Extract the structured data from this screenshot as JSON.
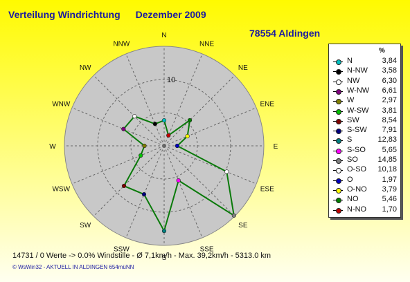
{
  "title": "Verteilung Windrichtung",
  "month": "Dezember 2009",
  "station": "78554 Aldingen",
  "footer": "14731 / 0 Werte  -> 0.0% Windstille   -   Ø 7,1km/h   -  Max. 39,2km/h   -   5313.0 km",
  "credits": "© WsWin32  -  AKTUELL IN ALDINGEN 654müNN",
  "chart_data": {
    "type": "polar-line",
    "unit": "%",
    "ring_label": "10",
    "rmax": 15,
    "directions": [
      "N",
      "NNE",
      "NE",
      "ENE",
      "E",
      "ESE",
      "SE",
      "SSE",
      "S",
      "SSW",
      "SW",
      "WSW",
      "W",
      "WNW",
      "NW",
      "NNW"
    ],
    "series": [
      {
        "name": "N",
        "value": 3.84,
        "color": "#00c0c0"
      },
      {
        "name": "N-NW",
        "value": 3.58,
        "color": "#000000"
      },
      {
        "name": "NW",
        "value": 6.3,
        "color": "#ffffff"
      },
      {
        "name": "W-NW",
        "value": 6.61,
        "color": "#800080"
      },
      {
        "name": "W",
        "value": 2.97,
        "color": "#808000"
      },
      {
        "name": "W-SW",
        "value": 3.81,
        "color": "#00c000"
      },
      {
        "name": "SW",
        "value": 8.54,
        "color": "#800000"
      },
      {
        "name": "S-SW",
        "value": 7.91,
        "color": "#000080"
      },
      {
        "name": "S",
        "value": 12.83,
        "color": "#008080"
      },
      {
        "name": "S-SO",
        "value": 5.65,
        "color": "#ff00ff"
      },
      {
        "name": "SO",
        "value": 14.85,
        "color": "#808080"
      },
      {
        "name": "O-SO",
        "value": 10.18,
        "color": "#ffffff"
      },
      {
        "name": "O",
        "value": 1.97,
        "color": "#0000c0"
      },
      {
        "name": "O-NO",
        "value": 3.79,
        "color": "#ffff00"
      },
      {
        "name": "NO",
        "value": 5.46,
        "color": "#008000"
      },
      {
        "name": "N-NO",
        "value": 1.7,
        "color": "#c00000"
      }
    ],
    "legend_header": "%",
    "legend_position": "right"
  }
}
